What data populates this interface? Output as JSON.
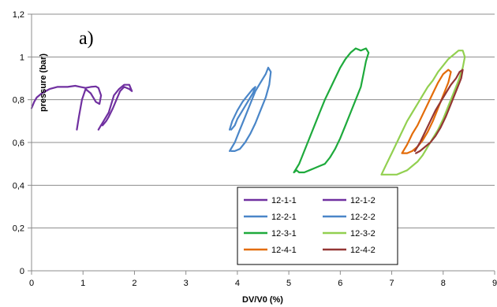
{
  "chart_data": {
    "type": "line",
    "panel_label": "a)",
    "xlabel": "DV/V0 (%)",
    "ylabel": "pressure (bar)",
    "xlim": [
      0,
      9
    ],
    "ylim": [
      0,
      1.2
    ],
    "x_ticks": [
      "0",
      "1",
      "2",
      "3",
      "4",
      "5",
      "6",
      "7",
      "8",
      "9"
    ],
    "y_ticks": [
      "0",
      "0,2",
      "0,4",
      "0,6",
      "0,8",
      "1",
      "1,2"
    ],
    "grid": "horizontal",
    "legend_position": "lower-center",
    "series": [
      {
        "name": "12-1-1",
        "color": "#7030a0",
        "x": [
          0.0,
          0.05,
          0.1,
          0.2,
          0.35,
          0.5,
          0.7,
          0.85,
          0.95,
          1.05,
          1.15,
          1.25,
          1.3,
          1.35,
          1.32,
          1.25,
          1.15,
          1.05,
          0.98,
          0.92,
          0.88
        ],
        "y": [
          0.76,
          0.79,
          0.81,
          0.83,
          0.85,
          0.86,
          0.86,
          0.865,
          0.86,
          0.855,
          0.86,
          0.862,
          0.855,
          0.82,
          0.78,
          0.79,
          0.83,
          0.85,
          0.8,
          0.72,
          0.66
        ]
      },
      {
        "name": "12-1-2",
        "color": "#7030a0",
        "x": [
          1.3,
          1.4,
          1.5,
          1.55,
          1.6,
          1.7,
          1.8,
          1.9,
          1.95,
          1.9,
          1.8,
          1.72,
          1.65,
          1.58,
          1.5,
          1.45,
          1.38
        ],
        "y": [
          0.66,
          0.7,
          0.74,
          0.78,
          0.82,
          0.85,
          0.87,
          0.87,
          0.84,
          0.85,
          0.86,
          0.84,
          0.8,
          0.76,
          0.72,
          0.7,
          0.68
        ]
      },
      {
        "name": "12-2-1",
        "color": "#4a86c8",
        "x": [
          3.85,
          3.9,
          4.0,
          4.1,
          4.2,
          4.3,
          4.35,
          4.3,
          4.2,
          4.1,
          4.0,
          3.95,
          3.88
        ],
        "y": [
          0.66,
          0.7,
          0.75,
          0.79,
          0.82,
          0.85,
          0.86,
          0.83,
          0.79,
          0.75,
          0.71,
          0.68,
          0.66
        ]
      },
      {
        "name": "12-2-2",
        "color": "#4a86c8",
        "x": [
          3.85,
          3.95,
          4.05,
          4.15,
          4.25,
          4.35,
          4.45,
          4.55,
          4.6,
          4.65,
          4.62,
          4.55,
          4.45,
          4.35,
          4.25,
          4.15,
          4.05,
          3.95,
          3.88
        ],
        "y": [
          0.56,
          0.6,
          0.66,
          0.72,
          0.78,
          0.84,
          0.88,
          0.92,
          0.95,
          0.93,
          0.87,
          0.81,
          0.75,
          0.69,
          0.64,
          0.6,
          0.57,
          0.56,
          0.56
        ]
      },
      {
        "name": "12-3-1",
        "color": "#1eaa3c",
        "x": [
          5.1,
          5.2,
          5.3,
          5.4,
          5.5,
          5.6,
          5.7,
          5.8,
          5.9,
          6.0,
          6.1,
          6.2,
          6.3,
          6.4,
          6.5,
          6.55,
          6.5,
          6.45,
          6.4,
          6.3,
          6.2,
          6.1,
          6.0,
          5.9,
          5.8,
          5.7,
          5.6,
          5.5,
          5.4,
          5.3,
          5.2,
          5.15,
          5.1
        ],
        "y": [
          0.46,
          0.5,
          0.56,
          0.62,
          0.68,
          0.74,
          0.8,
          0.85,
          0.9,
          0.95,
          0.99,
          1.02,
          1.04,
          1.03,
          1.04,
          1.02,
          0.98,
          0.92,
          0.86,
          0.8,
          0.74,
          0.68,
          0.62,
          0.57,
          0.53,
          0.5,
          0.49,
          0.48,
          0.47,
          0.46,
          0.46,
          0.47,
          0.46
        ]
      },
      {
        "name": "12-3-2",
        "color": "#92d050",
        "x": [
          6.8,
          6.9,
          7.0,
          7.1,
          7.2,
          7.3,
          7.4,
          7.5,
          7.6,
          7.7,
          7.8,
          7.9,
          8.0,
          8.1,
          8.2,
          8.3,
          8.38,
          8.42,
          8.38,
          8.3,
          8.2,
          8.1,
          8.0,
          7.9,
          7.8,
          7.7,
          7.6,
          7.5,
          7.4,
          7.3,
          7.2,
          7.1,
          7.0,
          6.9,
          6.8
        ],
        "y": [
          0.45,
          0.5,
          0.55,
          0.6,
          0.65,
          0.7,
          0.74,
          0.78,
          0.82,
          0.86,
          0.89,
          0.93,
          0.96,
          0.99,
          1.01,
          1.03,
          1.03,
          1.0,
          0.95,
          0.89,
          0.83,
          0.77,
          0.71,
          0.66,
          0.62,
          0.58,
          0.54,
          0.51,
          0.49,
          0.47,
          0.46,
          0.45,
          0.45,
          0.45,
          0.45
        ]
      },
      {
        "name": "12-4-1",
        "color": "#e36c09",
        "x": [
          7.2,
          7.3,
          7.4,
          7.5,
          7.6,
          7.7,
          7.8,
          7.9,
          8.0,
          8.1,
          8.15,
          8.1,
          8.0,
          7.9,
          7.8,
          7.7,
          7.6,
          7.5,
          7.4,
          7.3,
          7.2
        ],
        "y": [
          0.55,
          0.59,
          0.64,
          0.68,
          0.73,
          0.78,
          0.83,
          0.88,
          0.92,
          0.94,
          0.93,
          0.88,
          0.82,
          0.76,
          0.7,
          0.65,
          0.61,
          0.58,
          0.56,
          0.55,
          0.55
        ]
      },
      {
        "name": "12-4-2",
        "color": "#943634",
        "x": [
          7.45,
          7.55,
          7.65,
          7.75,
          7.85,
          7.95,
          8.05,
          8.15,
          8.25,
          8.32,
          8.38,
          8.35,
          8.25,
          8.15,
          8.05,
          7.95,
          7.85,
          7.75,
          7.65,
          7.55,
          7.47
        ],
        "y": [
          0.56,
          0.6,
          0.65,
          0.7,
          0.75,
          0.79,
          0.83,
          0.87,
          0.9,
          0.93,
          0.94,
          0.9,
          0.84,
          0.78,
          0.72,
          0.67,
          0.63,
          0.6,
          0.58,
          0.56,
          0.55
        ]
      }
    ]
  }
}
